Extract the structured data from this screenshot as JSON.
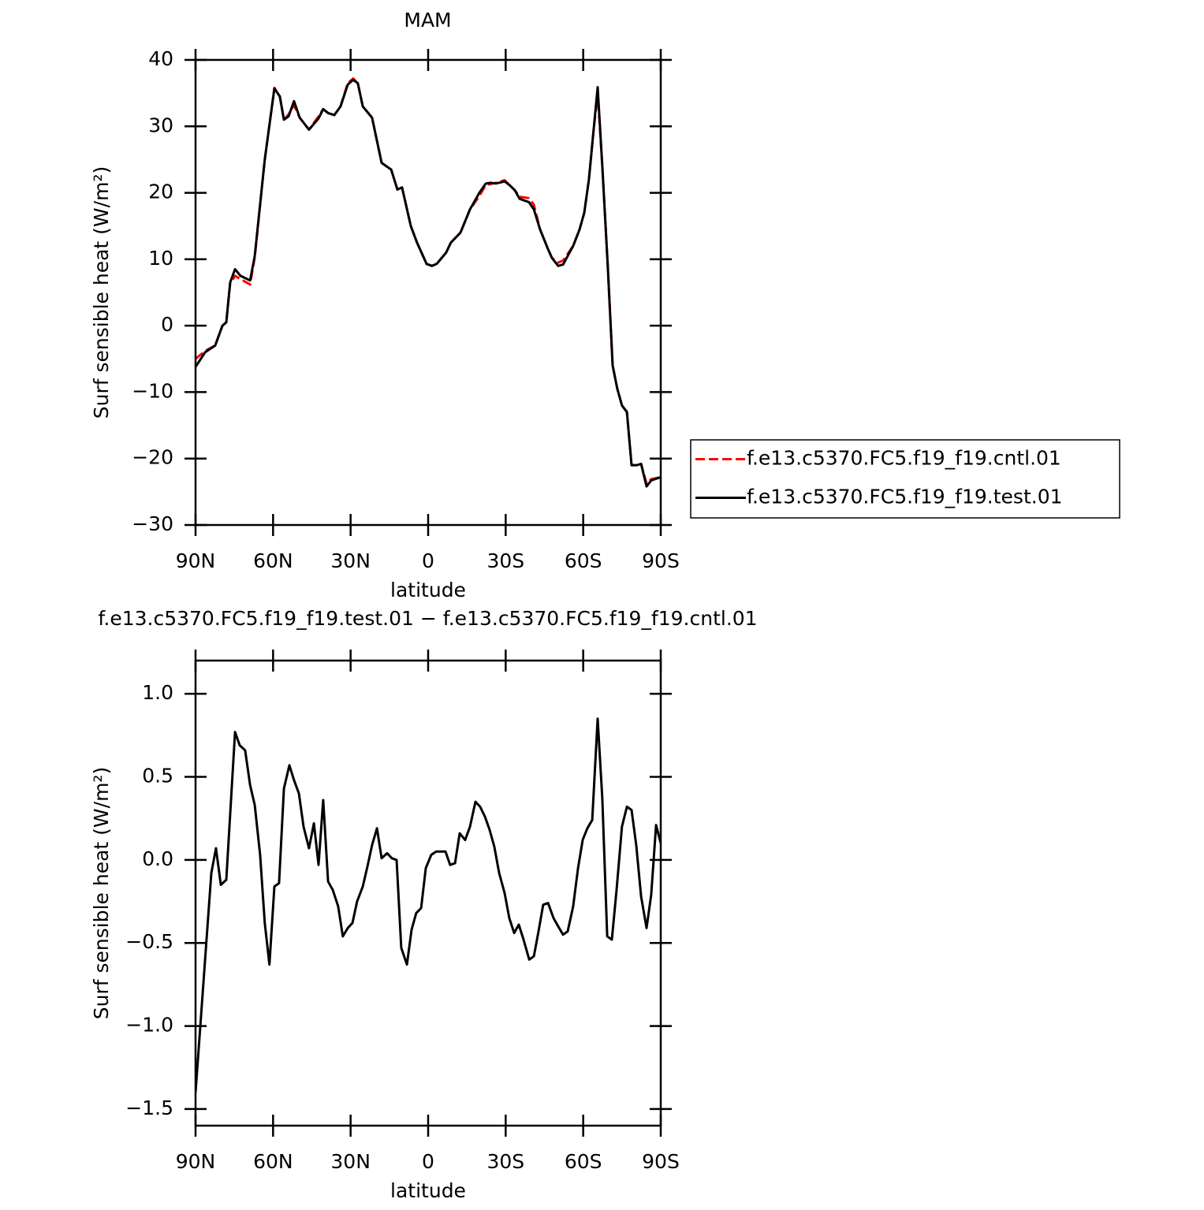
{
  "chart_data": [
    {
      "type": "line",
      "title": "MAM",
      "xlabel": "latitude",
      "ylabel": "Surf sensible heat (W/m²)",
      "xlim": [
        90,
        -90
      ],
      "ylim": [
        -30,
        40
      ],
      "xticks": [
        {
          "value": 90,
          "label": "90N"
        },
        {
          "value": 60,
          "label": "60N"
        },
        {
          "value": 30,
          "label": "30N"
        },
        0,
        {
          "value": -30,
          "label": "30S"
        },
        {
          "value": -60,
          "label": "60S"
        },
        {
          "value": -90,
          "label": "90S"
        }
      ],
      "yticks": [
        {
          "value": -30,
          "label": "−30"
        },
        {
          "value": -20,
          "label": "−20"
        },
        {
          "value": -10,
          "label": "−10"
        },
        0,
        10,
        20,
        30,
        40
      ],
      "legend": "right",
      "x": [
        90,
        86.3,
        82.4,
        79.6,
        78.1,
        76.6,
        74.7,
        72.6,
        68.9,
        67.1,
        63.2,
        59.5,
        57.4,
        55.8,
        54,
        51.9,
        49.7,
        46.1,
        42.4,
        40.6,
        38.7,
        36.3,
        33.9,
        31.1,
        29,
        27.2,
        25.3,
        21.7,
        18,
        14.3,
        11.9,
        10.1,
        6.7,
        4.3,
        0.6,
        -1.5,
        -3.3,
        -7,
        -8.8,
        -12.5,
        -16.2,
        -19.8,
        -22.3,
        -24.1,
        -26.2,
        -29.6,
        -31.4,
        -33.5,
        -35.4,
        -39,
        -40.9,
        -43.3,
        -46.4,
        -47.9,
        -50.3,
        -52.2,
        -56.1,
        -58.6,
        -60.4,
        -62.2,
        -63.8,
        -65.6,
        -67.4,
        -69.5,
        -71.4,
        -73.2,
        -75,
        -76.9,
        -78.7,
        -80.8,
        -82.4,
        -84.5,
        -86.3,
        -90
      ],
      "series": [
        {
          "name": "f.e13.c5370.FC5.f19_f19.cntl.01",
          "color": "#ff0000",
          "dash": true,
          "values": [
            -5,
            -3.8,
            -3,
            0,
            0.5,
            6.3,
            7.5,
            7,
            6.2,
            10.3,
            25,
            35.8,
            34.5,
            31,
            31.8,
            33.2,
            31.3,
            29.5,
            31.5,
            32.6,
            32,
            31.7,
            33,
            36.5,
            37.2,
            36.5,
            33,
            31.3,
            24.5,
            23.5,
            20.5,
            20.8,
            15,
            12.5,
            9.3,
            9.0,
            9.3,
            11,
            12.5,
            14,
            17.5,
            19.5,
            21.2,
            21.3,
            21.5,
            21.9,
            21.2,
            20.4,
            19.4,
            19.2,
            18.2,
            14.5,
            11.5,
            10.2,
            9.5,
            9.8,
            12,
            14.5,
            17,
            22,
            28.5,
            35,
            24,
            9,
            -6,
            -9.5,
            -12,
            -13,
            -21,
            -21,
            -20.8,
            -23.8,
            -23.1,
            -22.8
          ]
        },
        {
          "name": "f.e13.c5370.FC5.f19_f19.test.01",
          "color": "#000000",
          "dash": false,
          "values": [
            -6.2,
            -4,
            -3,
            0,
            0.5,
            6.5,
            8.5,
            7.5,
            6.8,
            10.5,
            25,
            35.7,
            34.5,
            31,
            31.5,
            33.8,
            31.3,
            29.5,
            31.2,
            32.6,
            32,
            31.7,
            33,
            36.3,
            37,
            36.5,
            33,
            31.3,
            24.5,
            23.5,
            20.5,
            20.8,
            15,
            12.5,
            9.3,
            9.0,
            9.3,
            11,
            12.5,
            14,
            17.5,
            20,
            21.4,
            21.5,
            21.4,
            21.7,
            21.2,
            20.4,
            19.1,
            18.6,
            17.5,
            14.5,
            11.5,
            10.2,
            9,
            9.2,
            12,
            14.5,
            17,
            22,
            28.5,
            35.9,
            24,
            9,
            -6,
            -9.5,
            -12,
            -13,
            -21,
            -21,
            -20.8,
            -24.2,
            -23.3,
            -22.8
          ]
        }
      ]
    },
    {
      "type": "line",
      "title": "f.e13.c5370.FC5.f19_f19.test.01 − f.e13.c5370.FC5.f19_f19.cntl.01",
      "xlabel": "latitude",
      "ylabel": "Surf sensible heat (W/m²)",
      "xlim": [
        90,
        -90
      ],
      "ylim": [
        -1.6,
        1.2
      ],
      "xticks": [
        {
          "value": 90,
          "label": "90N"
        },
        {
          "value": 60,
          "label": "60N"
        },
        {
          "value": 30,
          "label": "30N"
        },
        0,
        {
          "value": -30,
          "label": "30S"
        },
        {
          "value": -60,
          "label": "60S"
        },
        {
          "value": -90,
          "label": "90S"
        }
      ],
      "yticks": [
        {
          "value": -1.5,
          "label": "−1.5"
        },
        {
          "value": -1,
          "label": "−1.0"
        },
        {
          "value": -0.5,
          "label": "−0.5"
        },
        {
          "value": 0,
          "label": "0.0"
        },
        0.5,
        {
          "value": 1,
          "label": "1.0"
        }
      ],
      "x": [
        90,
        83.9,
        82.1,
        80.2,
        78.1,
        74.7,
        72.9,
        70.8,
        68.9,
        67.1,
        65,
        63.2,
        61.4,
        59.5,
        57.7,
        55.8,
        53.7,
        51.9,
        50,
        48.2,
        46.1,
        44.2,
        42.4,
        40.6,
        38.7,
        36.9,
        34.8,
        33,
        31.1,
        29.3,
        27.5,
        25.3,
        23.5,
        21.7,
        19.8,
        18,
        15.9,
        14,
        12.2,
        10.4,
        8.2,
        6.4,
        4.6,
        2.7,
        0.9,
        -1.2,
        -3.1,
        -4.9,
        -6.7,
        -8.5,
        -10.4,
        -12.2,
        -14.3,
        -16.2,
        -18.3,
        -20.1,
        -22,
        -23.8,
        -25.6,
        -27.5,
        -29.6,
        -31.4,
        -33.3,
        -35.1,
        -36.9,
        -39.1,
        -40.9,
        -42.7,
        -44.5,
        -46.4,
        -48.5,
        -50.3,
        -52.2,
        -54,
        -56.1,
        -58,
        -59.8,
        -61.6,
        -63.5,
        -65.6,
        -67.4,
        -69.3,
        -71.1,
        -72.9,
        -75,
        -76.9,
        -78.7,
        -80.5,
        -82.4,
        -84.5,
        -86.3,
        -88.2,
        -90
      ],
      "series": [
        {
          "color": "#000000",
          "dash": false,
          "values": [
            -1.4,
            -0.08,
            0.07,
            -0.15,
            -0.12,
            0.77,
            0.69,
            0.66,
            0.45,
            0.33,
            0.03,
            -0.38,
            -0.63,
            -0.16,
            -0.14,
            0.43,
            0.57,
            0.48,
            0.4,
            0.2,
            0.07,
            0.22,
            -0.03,
            0.36,
            -0.13,
            -0.18,
            -0.28,
            -0.46,
            -0.41,
            -0.38,
            -0.25,
            -0.16,
            -0.04,
            0.09,
            0.19,
            0.01,
            0.04,
            0.01,
            0.0,
            -0.53,
            -0.63,
            -0.42,
            -0.32,
            -0.29,
            -0.05,
            0.03,
            0.05,
            0.05,
            0.05,
            -0.03,
            -0.02,
            0.16,
            0.12,
            0.2,
            0.35,
            0.32,
            0.26,
            0.18,
            0.08,
            -0.08,
            -0.2,
            -0.35,
            -0.44,
            -0.39,
            -0.48,
            -0.6,
            -0.58,
            -0.43,
            -0.27,
            -0.26,
            -0.35,
            -0.4,
            -0.45,
            -0.43,
            -0.28,
            -0.05,
            0.12,
            0.19,
            0.24,
            0.85,
            0.37,
            -0.46,
            -0.48,
            -0.18,
            0.2,
            0.32,
            0.3,
            0.09,
            -0.22,
            -0.41,
            -0.21,
            0.21,
            0.1
          ]
        }
      ]
    }
  ]
}
